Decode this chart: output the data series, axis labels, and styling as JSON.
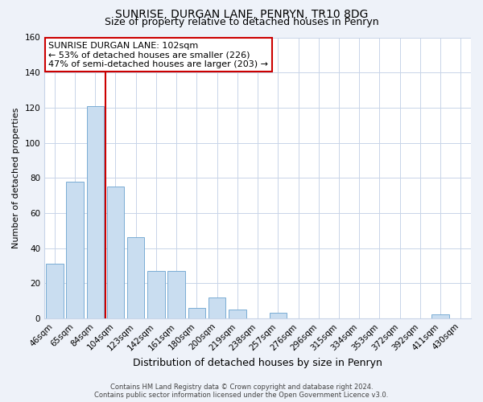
{
  "title": "SUNRISE, DURGAN LANE, PENRYN, TR10 8DG",
  "subtitle": "Size of property relative to detached houses in Penryn",
  "xlabel": "Distribution of detached houses by size in Penryn",
  "ylabel": "Number of detached properties",
  "bin_labels": [
    "46sqm",
    "65sqm",
    "84sqm",
    "104sqm",
    "123sqm",
    "142sqm",
    "161sqm",
    "180sqm",
    "200sqm",
    "219sqm",
    "238sqm",
    "257sqm",
    "276sqm",
    "296sqm",
    "315sqm",
    "334sqm",
    "353sqm",
    "372sqm",
    "392sqm",
    "411sqm",
    "430sqm"
  ],
  "bar_heights": [
    31,
    78,
    121,
    75,
    46,
    27,
    27,
    6,
    12,
    5,
    0,
    3,
    0,
    0,
    0,
    0,
    0,
    0,
    0,
    2,
    0
  ],
  "bar_color": "#c9ddf0",
  "bar_edge_color": "#7aadd4",
  "vline_color": "#cc0000",
  "vline_index": 2.5,
  "ylim": [
    0,
    160
  ],
  "yticks": [
    0,
    20,
    40,
    60,
    80,
    100,
    120,
    140,
    160
  ],
  "annotation_title": "SUNRISE DURGAN LANE: 102sqm",
  "annotation_line1": "← 53% of detached houses are smaller (226)",
  "annotation_line2": "47% of semi-detached houses are larger (203) →",
  "annotation_box_color": "#ffffff",
  "annotation_box_edge_color": "#cc0000",
  "footer_line1": "Contains HM Land Registry data © Crown copyright and database right 2024.",
  "footer_line2": "Contains public sector information licensed under the Open Government Licence v3.0.",
  "background_color": "#eef2f9",
  "plot_background_color": "#ffffff",
  "grid_color": "#c8d4e8",
  "title_fontsize": 10,
  "subtitle_fontsize": 9,
  "ylabel_fontsize": 8,
  "xlabel_fontsize": 9,
  "tick_fontsize": 7.5,
  "ann_fontsize": 8,
  "footer_fontsize": 6
}
